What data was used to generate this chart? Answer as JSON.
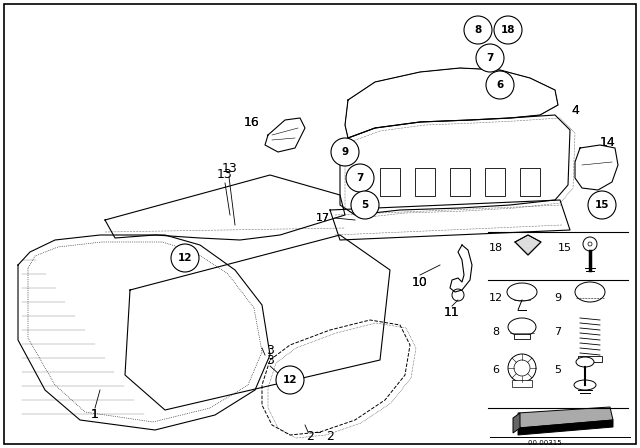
{
  "bg_color": "#ffffff",
  "line_color": "#000000",
  "fig_width": 6.4,
  "fig_height": 4.48,
  "dpi": 100
}
